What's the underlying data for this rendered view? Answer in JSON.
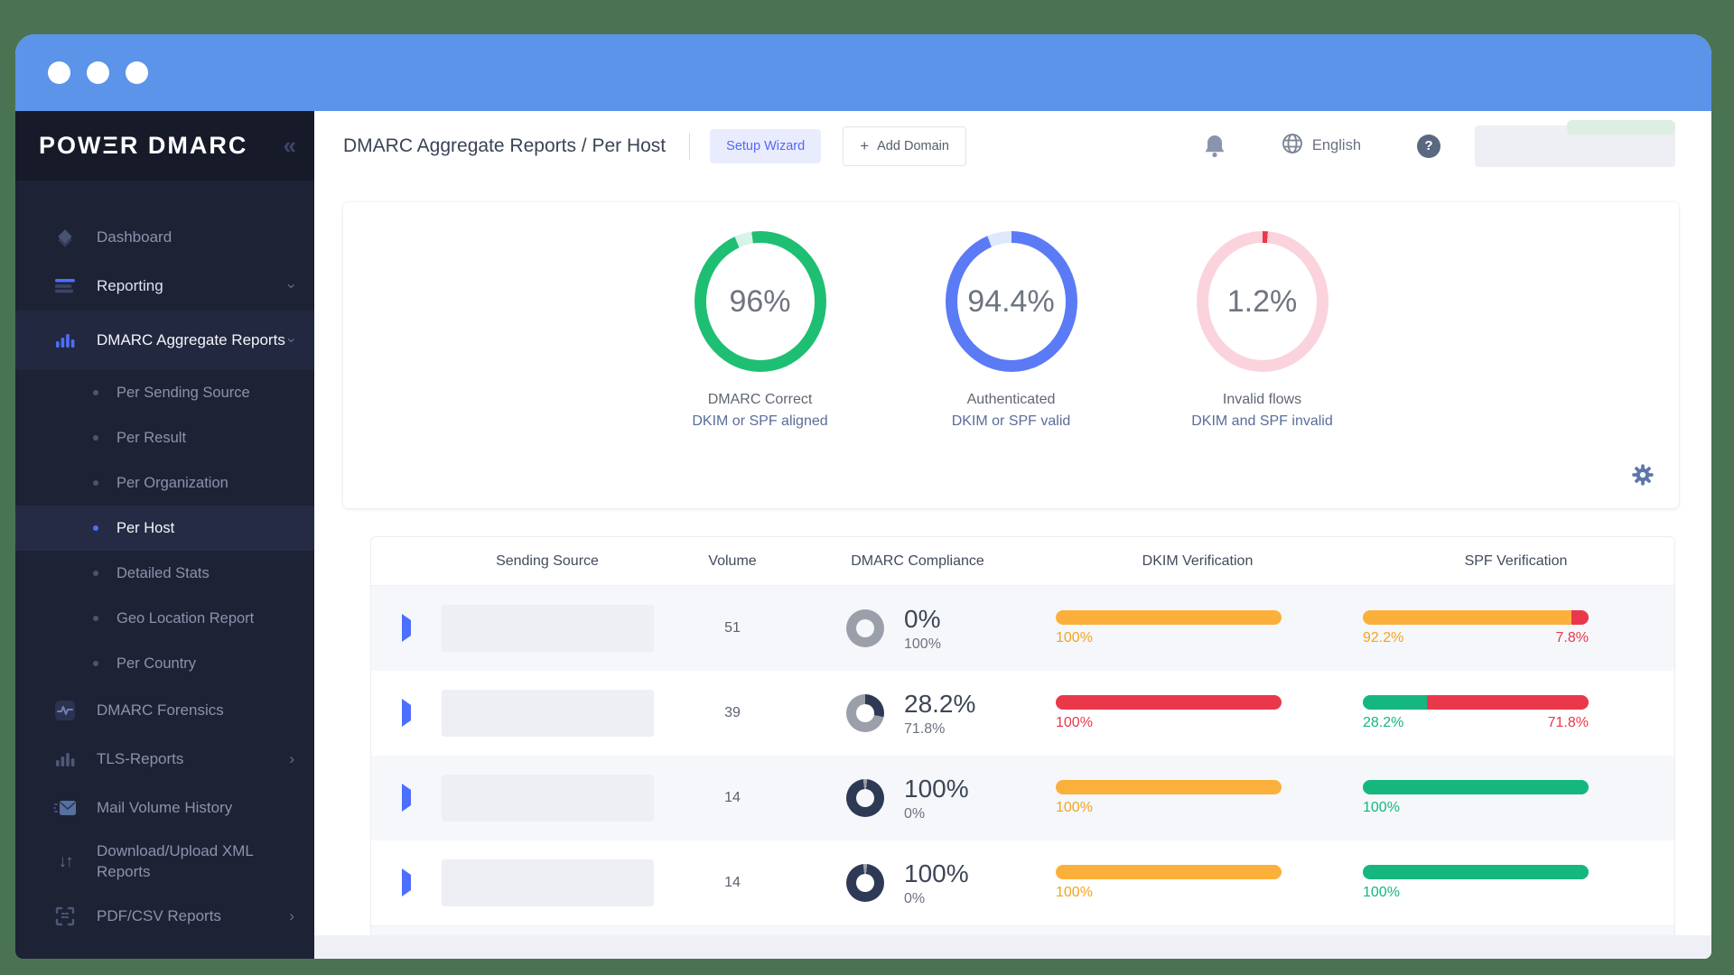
{
  "brand": {
    "logo": "POWΞR DMARC"
  },
  "icons": {
    "collapse": "«",
    "plus": "+",
    "help": "?",
    "updown": "↓↑",
    "chevron": "›"
  },
  "sidebar": {
    "items": [
      {
        "label": "Dashboard"
      },
      {
        "label": "Reporting"
      },
      {
        "label": "DMARC Aggregate Reports"
      },
      {
        "label": "Per Sending Source"
      },
      {
        "label": "Per Result"
      },
      {
        "label": "Per Organization"
      },
      {
        "label": "Per Host"
      },
      {
        "label": "Detailed Stats"
      },
      {
        "label": "Geo Location Report"
      },
      {
        "label": "Per Country"
      },
      {
        "label": "DMARC Forensics"
      },
      {
        "label": "TLS-Reports"
      },
      {
        "label": "Mail Volume History"
      },
      {
        "label": "Download/Upload XML Reports"
      },
      {
        "label": "PDF/CSV Reports"
      }
    ]
  },
  "header": {
    "title": "DMARC Aggregate Reports / Per Host",
    "setup_wizard_label": "Setup Wizard",
    "add_domain_label": "Add Domain",
    "language_label": "English"
  },
  "colors": {
    "accent_blue": "#4c6fff",
    "amber": "#fbb03b",
    "red": "#e9384a",
    "green": "#15b77e",
    "navy": "#2e3a55",
    "gray": "#9b9fa9"
  },
  "donuts": [
    {
      "value": "96%",
      "pct": 96,
      "color": "#1fbf73",
      "track": "#d8f3e7",
      "gap": "center",
      "line1": "DMARC Correct",
      "line2": "DKIM or SPF aligned"
    },
    {
      "value": "94.4%",
      "pct": 94.4,
      "color": "#5b7af5",
      "track": "#dfe7fd",
      "gap": "end",
      "line1": "Authenticated",
      "line2": "DKIM or SPF valid"
    },
    {
      "value": "1.2%",
      "pct": 1.2,
      "color": "#e9384a",
      "track": "#fbd3dc",
      "gap": "end",
      "line1": "Invalid flows",
      "line2": "DKIM and SPF invalid"
    }
  ],
  "table": {
    "headers": [
      "Sending Source",
      "Volume",
      "DMARC Compliance",
      "DKIM Verification",
      "SPF Verification"
    ],
    "rows": [
      {
        "volume": "51",
        "donut": {
          "pct": 0,
          "tick": false
        },
        "main": "0%",
        "sub": "100%",
        "dkim": {
          "segs": [
            {
              "pct": 100,
              "color": "#fbb03b"
            }
          ],
          "labels": [
            {
              "text": "100%",
              "color": "#f6a21e"
            }
          ]
        },
        "spf": {
          "segs": [
            {
              "pct": 92.2,
              "color": "#fbb03b"
            },
            {
              "pct": 7.8,
              "color": "#e9384a"
            }
          ],
          "labels": [
            {
              "text": "92.2%",
              "color": "#f6a21e"
            },
            {
              "text": "7.8%",
              "color": "#e9384a"
            }
          ]
        }
      },
      {
        "volume": "39",
        "donut": {
          "pct": 28.2,
          "tick": false
        },
        "main": "28.2%",
        "sub": "71.8%",
        "dkim": {
          "segs": [
            {
              "pct": 100,
              "color": "#e9384a"
            }
          ],
          "labels": [
            {
              "text": "100%",
              "color": "#e9384a"
            }
          ]
        },
        "spf": {
          "segs": [
            {
              "pct": 28.2,
              "color": "#15b77e"
            },
            {
              "pct": 71.8,
              "color": "#e9384a"
            }
          ],
          "labels": [
            {
              "text": "28.2%",
              "color": "#15b77e"
            },
            {
              "text": "71.8%",
              "color": "#e9384a"
            }
          ]
        }
      },
      {
        "volume": "14",
        "donut": {
          "pct": 100,
          "tick": true
        },
        "main": "100%",
        "sub": "0%",
        "dkim": {
          "segs": [
            {
              "pct": 100,
              "color": "#fbb03b"
            }
          ],
          "labels": [
            {
              "text": "100%",
              "color": "#f6a21e"
            }
          ]
        },
        "spf": {
          "segs": [
            {
              "pct": 100,
              "color": "#15b77e"
            }
          ],
          "labels": [
            {
              "text": "100%",
              "color": "#15b77e"
            }
          ]
        }
      },
      {
        "volume": "14",
        "donut": {
          "pct": 100,
          "tick": true
        },
        "main": "100%",
        "sub": "0%",
        "dkim": {
          "segs": [
            {
              "pct": 100,
              "color": "#fbb03b"
            }
          ],
          "labels": [
            {
              "text": "100%",
              "color": "#f6a21e"
            }
          ]
        },
        "spf": {
          "segs": [
            {
              "pct": 100,
              "color": "#15b77e"
            }
          ],
          "labels": [
            {
              "text": "100%",
              "color": "#15b77e"
            }
          ]
        }
      }
    ]
  }
}
